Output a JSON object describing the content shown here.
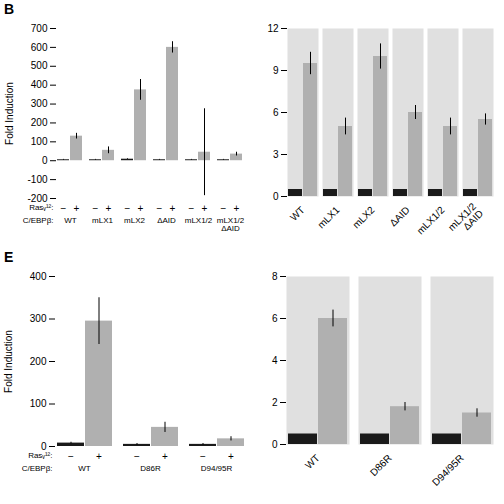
{
  "chart_data": [
    {
      "type": "bar",
      "title": "B",
      "categories": [
        "WT",
        "mLX1",
        "mLX2",
        "ΔAID",
        "mLX1/2",
        "mLX1/2\nΔAID"
      ],
      "series": [
        {
          "name": "−",
          "color": "#1a1a1a",
          "values": [
            5,
            5,
            8,
            5,
            5,
            5
          ],
          "errors": [
            2,
            2,
            2,
            2,
            2,
            2
          ]
        },
        {
          "name": "+",
          "color": "#b0b0b0",
          "values": [
            130,
            55,
            375,
            600,
            45,
            35
          ],
          "errors": [
            15,
            18,
            55,
            30,
            230,
            10
          ]
        }
      ],
      "ylabel": "Fold Induction",
      "ylim": [
        -200,
        700
      ],
      "yticks": [
        -200,
        -100,
        0,
        100,
        200,
        300,
        400,
        500,
        600,
        700
      ],
      "annotations": [
        "Rasᵥ¹²:",
        "C/EBPβ:"
      ]
    },
    {
      "type": "bar",
      "categories": [
        "WT",
        "mLX1",
        "mLX2",
        "ΔAID",
        "mLX1/2",
        "mLX1/2\nΔAID"
      ],
      "series": [
        {
          "color": "#1a1a1a",
          "values": [
            0.5,
            0.5,
            0.5,
            0.5,
            0.5,
            0.5
          ]
        },
        {
          "color": "#b0b0b0",
          "values": [
            9.5,
            5.0,
            10.0,
            6.0,
            5.0,
            5.5
          ],
          "errors": [
            0.8,
            0.6,
            0.9,
            0.5,
            0.6,
            0.4
          ]
        }
      ],
      "ylim": [
        0,
        12
      ],
      "yticks": [
        0,
        3,
        6,
        9,
        12
      ]
    },
    {
      "type": "bar",
      "title": "E",
      "categories": [
        "WT",
        "D86R",
        "D94/95R"
      ],
      "series": [
        {
          "name": "−",
          "color": "#1a1a1a",
          "values": [
            8,
            5,
            5
          ],
          "errors": [
            2,
            2,
            2
          ]
        },
        {
          "name": "+",
          "color": "#b0b0b0",
          "values": [
            295,
            45,
            18
          ],
          "errors": [
            55,
            12,
            5
          ]
        }
      ],
      "ylabel": "Fold Induction",
      "ylim": [
        0,
        400
      ],
      "yticks": [
        0,
        100,
        200,
        300,
        400
      ],
      "annotations": [
        "Rasᵥ¹²:",
        "C/EBPβ:"
      ]
    },
    {
      "type": "bar",
      "categories": [
        "WT",
        "D86R",
        "D94/95R"
      ],
      "series": [
        {
          "color": "#1a1a1a",
          "values": [
            0.5,
            0.5,
            0.5
          ]
        },
        {
          "color": "#b0b0b0",
          "values": [
            6.0,
            1.8,
            1.5
          ],
          "errors": [
            0.4,
            0.2,
            0.2
          ]
        }
      ],
      "ylim": [
        0,
        8
      ],
      "yticks": [
        0,
        2,
        4,
        6,
        8
      ]
    }
  ]
}
